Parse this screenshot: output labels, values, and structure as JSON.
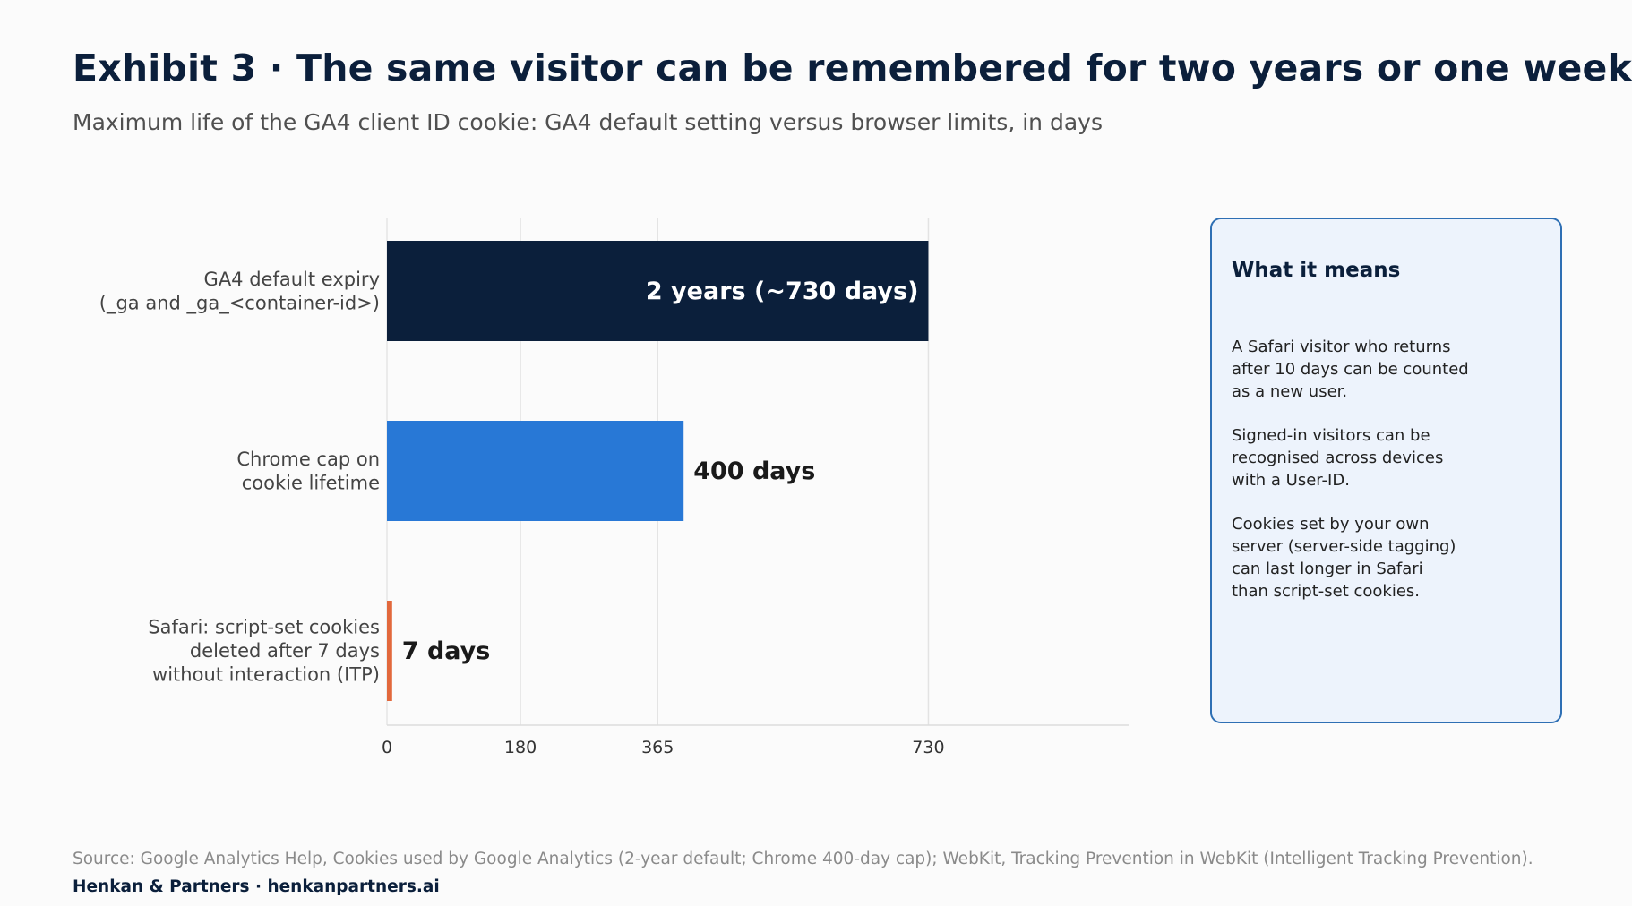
{
  "header": {
    "title": "Exhibit 3 · The same visitor can be remembered for two years or one week",
    "subtitle": "Maximum life of the GA4 client ID cookie: GA4 default setting versus browser limits, in days"
  },
  "chart_data": {
    "type": "bar",
    "orientation": "horizontal",
    "categories": [
      [
        "GA4 default expiry",
        "(_ga and _ga_<container-id>)"
      ],
      [
        "Chrome cap on",
        "cookie lifetime"
      ],
      [
        "Safari: script-set cookies",
        "deleted after 7 days",
        "without interaction (ITP)"
      ]
    ],
    "values": [
      730,
      400,
      7
    ],
    "data_labels": [
      "2 years (~730 days)",
      "400 days",
      "7 days"
    ],
    "bar_colors": [
      "#0b1f3b",
      "#2878d6",
      "#e2683c"
    ],
    "xticks": [
      0,
      180,
      365,
      730
    ],
    "xlim": [
      0,
      1000
    ],
    "grid": true
  },
  "panel": {
    "title": "What it means",
    "paragraphs": [
      "A Safari visitor who returns\nafter 10 days can be counted\nas a new user.",
      "Signed-in visitors can be\nrecognised across devices\nwith a User-ID.",
      "Cookies set by your own\nserver (server-side tagging)\ncan last longer in Safari\nthan script-set cookies."
    ]
  },
  "footer": {
    "source": "Source: Google Analytics Help, Cookies used by Google Analytics (2-year default; Chrome 400-day cap); WebKit, Tracking Prevention in WebKit (Intelligent Tracking Prevention).",
    "brand": "Henkan & Partners · henkanpartners.ai"
  }
}
